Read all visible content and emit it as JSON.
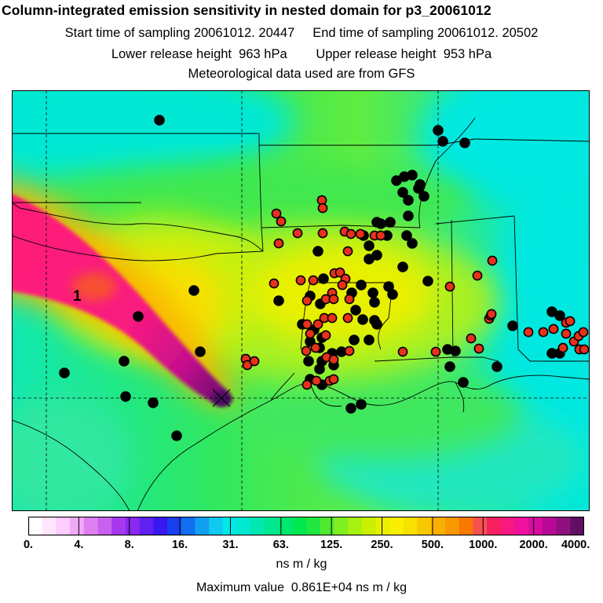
{
  "header": {
    "title": "Column-integrated emission sensitivity in nested domain for p3_20061012",
    "start_label": "Start time of sampling 20061012. 20447",
    "end_label": "End time of sampling 20061012. 20502",
    "lower_label": "Lower release height  963 hPa",
    "upper_label": "Upper release height  953 hPa",
    "met_label": "Meteorological data used are from GFS"
  },
  "map": {
    "marker_label": "1",
    "colors": {
      "background_low": "#00e8d4",
      "green": "#28e85a",
      "yellow_green": "#b8f000",
      "yellow": "#f0f000",
      "plume_pink": "#ff1a78",
      "plume_magenta": "#c8108c",
      "dark_purple": "#5a1070",
      "dot_black": "#000000",
      "dot_red": "#e8301c"
    }
  },
  "colorbar": {
    "colors": [
      "#ffffff",
      "#ffe6ff",
      "#ffccff",
      "#f0a8f8",
      "#e080f0",
      "#c860f0",
      "#a838f0",
      "#8828f0",
      "#6020f0",
      "#3818f0",
      "#1840f0",
      "#1070f0",
      "#10a0f0",
      "#10c8f0",
      "#00e8e8",
      "#00e8d0",
      "#00e8b0",
      "#00e890",
      "#00e870",
      "#00e850",
      "#20e840",
      "#50e830",
      "#80f020",
      "#a8f010",
      "#c8f000",
      "#e8f000",
      "#f8f000",
      "#f8e000",
      "#f8c800",
      "#f8b000",
      "#f89800",
      "#f87800",
      "#f85050",
      "#f82060",
      "#f81880",
      "#f010a0",
      "#d80ca0",
      "#b80898",
      "#901080",
      "#601060"
    ],
    "ticks": [
      "0.",
      "4.",
      "8.",
      "16.",
      "31.",
      "63.",
      "125.",
      "250.",
      "500.",
      "1000.",
      "2000.",
      "4000."
    ],
    "units": "ns m / kg"
  },
  "footer": {
    "max_label": "Maximum value  0.861E+04 ns m / kg"
  }
}
